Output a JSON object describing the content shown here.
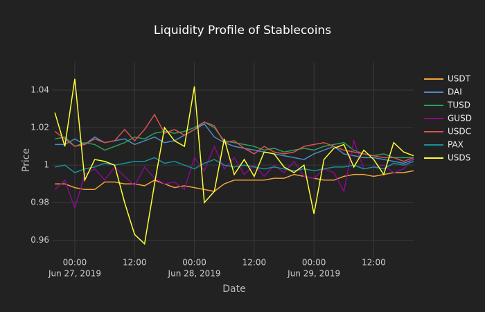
{
  "chart_data": {
    "type": "line",
    "title": "Liquidity Profile of Stablecoins",
    "x_label": "Date",
    "y_label": "Price",
    "x": [
      "2019-06-26T20:00",
      "2019-06-26T22:00",
      "2019-06-27T00:00",
      "2019-06-27T02:00",
      "2019-06-27T04:00",
      "2019-06-27T06:00",
      "2019-06-27T08:00",
      "2019-06-27T10:00",
      "2019-06-27T12:00",
      "2019-06-27T14:00",
      "2019-06-27T16:00",
      "2019-06-27T18:00",
      "2019-06-27T20:00",
      "2019-06-27T22:00",
      "2019-06-28T00:00",
      "2019-06-28T02:00",
      "2019-06-28T04:00",
      "2019-06-28T06:00",
      "2019-06-28T08:00",
      "2019-06-28T10:00",
      "2019-06-28T12:00",
      "2019-06-28T14:00",
      "2019-06-28T16:00",
      "2019-06-28T18:00",
      "2019-06-28T20:00",
      "2019-06-28T22:00",
      "2019-06-29T00:00",
      "2019-06-29T02:00",
      "2019-06-29T04:00",
      "2019-06-29T06:00",
      "2019-06-29T08:00",
      "2019-06-29T10:00",
      "2019-06-29T12:00",
      "2019-06-29T14:00",
      "2019-06-29T16:00",
      "2019-06-29T18:00",
      "2019-06-29T20:00"
    ],
    "xlim": [
      "2019-06-26T19:25",
      "2019-06-29T20:00"
    ],
    "xticks": [
      {
        "value": "2019-06-27T00:00",
        "label": "00:00",
        "date": "Jun 27, 2019"
      },
      {
        "value": "2019-06-27T12:00",
        "label": "12:00"
      },
      {
        "value": "2019-06-28T00:00",
        "label": "00:00",
        "date": "Jun 28, 2019"
      },
      {
        "value": "2019-06-28T12:00",
        "label": "12:00"
      },
      {
        "value": "2019-06-29T00:00",
        "label": "00:00",
        "date": "Jun 29, 2019"
      },
      {
        "value": "2019-06-29T12:00",
        "label": "12:00"
      }
    ],
    "ylim": [
      0.9505,
      1.0548
    ],
    "yticks": [
      {
        "value": 0.96,
        "label": "0.96"
      },
      {
        "value": 0.98,
        "label": "0.98"
      },
      1,
      {
        "value": 1.02,
        "label": "1.02"
      },
      {
        "value": 1.04,
        "label": "1.04"
      }
    ],
    "grid": true,
    "series": [
      {
        "name": "USDT",
        "color": "#f2a33a",
        "values": [
          0.99,
          0.99,
          0.988,
          0.987,
          0.987,
          0.991,
          0.991,
          0.99,
          0.99,
          0.989,
          0.992,
          0.99,
          0.988,
          0.989,
          0.988,
          0.987,
          0.986,
          0.99,
          0.992,
          0.992,
          0.992,
          0.992,
          0.993,
          0.993,
          0.995,
          0.994,
          0.993,
          0.992,
          0.992,
          0.994,
          0.995,
          0.995,
          0.994,
          0.995,
          0.996,
          0.996,
          0.997
        ]
      },
      {
        "name": "DAI",
        "color": "#4c8ccc",
        "values": [
          1.011,
          1.011,
          1.014,
          1.011,
          1.015,
          1.012,
          1.013,
          1.014,
          1.011,
          1.013,
          1.015,
          1.012,
          1.013,
          1.016,
          1.019,
          1.022,
          1.015,
          1.012,
          1.01,
          1.009,
          1.008,
          1.007,
          1.006,
          1.005,
          1.004,
          1.003,
          1.006,
          1.008,
          1.01,
          1.006,
          1.005,
          1.004,
          1.004,
          1.003,
          1.002,
          1.001,
          1.003
        ]
      },
      {
        "name": "TUSD",
        "color": "#2ca05a",
        "values": [
          1.014,
          1.015,
          1.01,
          1.012,
          1.011,
          1.008,
          1.01,
          1.012,
          1.015,
          1.014,
          1.017,
          1.018,
          1.017,
          1.018,
          1.02,
          1.023,
          1.02,
          1.013,
          1.012,
          1.011,
          1.01,
          1.008,
          1.009,
          1.007,
          1.008,
          1.009,
          1.008,
          1.01,
          1.011,
          1.012,
          1.008,
          1.006,
          1.005,
          1.006,
          1.004,
          1.004,
          1.004
        ]
      },
      {
        "name": "GUSD",
        "color": "#8a0a8a",
        "values": [
          0.987,
          0.992,
          0.977,
          0.995,
          0.998,
          0.992,
          0.999,
          0.994,
          0.989,
          0.999,
          0.993,
          0.99,
          0.991,
          0.987,
          1.004,
          0.997,
          1.01,
          0.998,
          1.004,
          0.995,
          1.0,
          0.994,
          1.0,
          0.996,
          1.002,
          0.994,
          0.993,
          0.998,
          0.996,
          0.986,
          1.013,
          0.998,
          0.999,
          1.0,
          0.996,
          0.998,
          1.004
        ]
      },
      {
        "name": "USDC",
        "color": "#d9534f",
        "values": [
          1.018,
          1.014,
          1.01,
          1.011,
          1.014,
          1.012,
          1.013,
          1.019,
          1.013,
          1.019,
          1.027,
          1.017,
          1.019,
          1.016,
          1.019,
          1.023,
          1.021,
          1.012,
          1.013,
          1.009,
          1.006,
          1.01,
          1.007,
          1.006,
          1.007,
          1.01,
          1.011,
          1.012,
          1.01,
          1.008,
          1.007,
          1.006,
          1.005,
          1.004,
          1.004,
          1.002,
          1.004
        ]
      },
      {
        "name": "PAX",
        "color": "#17919a",
        "values": [
          0.999,
          1.0,
          0.996,
          0.998,
          0.999,
          1.001,
          1.0,
          1.001,
          1.002,
          1.002,
          1.004,
          1.001,
          1.002,
          1.0,
          0.998,
          1.001,
          1.003,
          1.0,
          0.999,
          1.0,
          0.999,
          0.998,
          0.999,
          0.998,
          0.997,
          0.998,
          0.997,
          0.998,
          0.999,
          0.999,
          1.0,
          0.998,
          0.999,
          0.998,
          1.001,
          1.0,
          1.002
        ]
      },
      {
        "name": "USDS",
        "color": "#ffff33",
        "values": [
          1.028,
          1.01,
          1.046,
          0.992,
          1.003,
          1.002,
          1.0,
          0.98,
          0.963,
          0.958,
          0.99,
          1.02,
          1.013,
          1.01,
          1.042,
          0.98,
          0.986,
          1.014,
          0.995,
          1.003,
          0.994,
          1.007,
          1.006,
          0.999,
          0.996,
          1.0,
          0.974,
          1.003,
          1.009,
          1.011,
          0.999,
          1.008,
          1.003,
          0.995,
          1.012,
          1.007,
          1.005
        ]
      }
    ]
  }
}
